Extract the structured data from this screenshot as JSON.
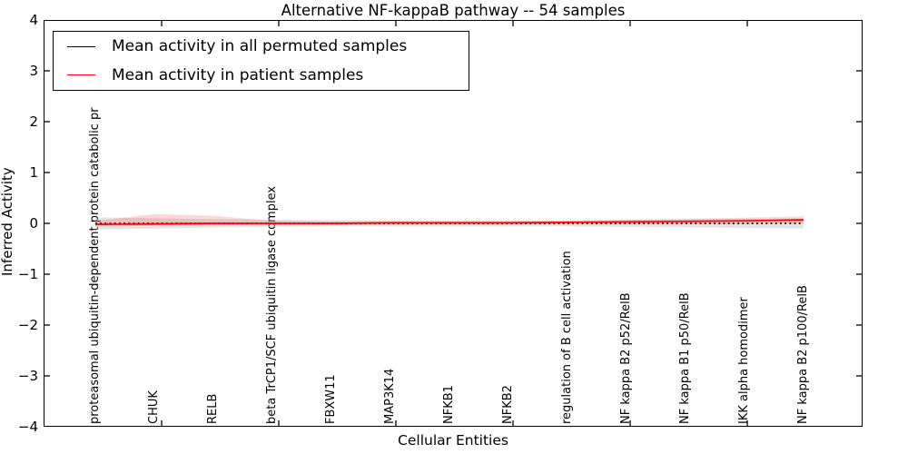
{
  "figure": {
    "title": "Alternative NF-kappaB pathway -- 54 samples"
  },
  "axes": {
    "xlabel": "Cellular Entities",
    "ylabel": "Inferred Activity",
    "y_ticklabels": [
      "4",
      "3",
      "2",
      "1",
      "0",
      "−1",
      "−2",
      "−3",
      "−4"
    ]
  },
  "chart_data": {
    "type": "line",
    "title": "Alternative NF-kappaB pathway -- 54 samples",
    "xlabel": "Cellular Entities",
    "ylabel": "Inferred Activity",
    "ylim": [
      -4,
      4
    ],
    "yticks": [
      4,
      3,
      2,
      1,
      0,
      -1,
      -2,
      -3,
      -4
    ],
    "grid": false,
    "legend_position": "upper left",
    "categories": [
      "proteasomal ubiquitin-dependent protein catabolic pr",
      "CHUK",
      "RELB",
      "beta TrCP1/SCF ubiquitin ligase complex",
      "FBXW11",
      "MAP3K14",
      "NFKB1",
      "NFKB2",
      "regulation of B cell activation",
      "NF kappa B2 p52/RelB",
      "NF kappa B1 p50/RelB",
      "IKK alpha homodimer",
      "NF kappa B2 p100/RelB"
    ],
    "series": [
      {
        "name": "Mean activity in all permuted samples",
        "color": "#000000",
        "style": "dotted",
        "values": [
          0.0,
          0.0,
          0.0,
          0.0,
          0.0,
          0.0,
          0.0,
          0.0,
          0.0,
          0.0,
          0.0,
          0.0,
          0.0
        ]
      },
      {
        "name": "Mean activity in patient samples",
        "color": "#ff0000",
        "style": "solid",
        "values": [
          -0.02,
          -0.01,
          0.0,
          0.0,
          0.0,
          0.01,
          0.01,
          0.01,
          0.02,
          0.03,
          0.04,
          0.05,
          0.07
        ]
      }
    ],
    "bands": [
      {
        "name": "permuted-std-band",
        "color": "#bbbbbb",
        "opacity": 0.4,
        "upper": [
          0.12,
          0.1,
          0.08,
          0.07,
          0.06,
          0.06,
          0.06,
          0.06,
          0.06,
          0.07,
          0.08,
          0.09,
          0.1
        ],
        "lower": [
          -0.12,
          -0.1,
          -0.08,
          -0.07,
          -0.06,
          -0.06,
          -0.06,
          -0.06,
          -0.06,
          -0.07,
          -0.08,
          -0.09,
          -0.1
        ]
      },
      {
        "name": "patient-std-band",
        "color": "#ff0000",
        "opacity": 0.16,
        "upper": [
          0.05,
          0.18,
          0.15,
          0.05,
          0.04,
          0.04,
          0.04,
          0.04,
          0.05,
          0.07,
          0.09,
          0.11,
          0.14
        ],
        "lower": [
          -0.06,
          -0.05,
          -0.04,
          -0.03,
          -0.03,
          -0.03,
          -0.03,
          -0.03,
          -0.02,
          -0.02,
          -0.01,
          -0.01,
          0.0
        ]
      }
    ]
  }
}
